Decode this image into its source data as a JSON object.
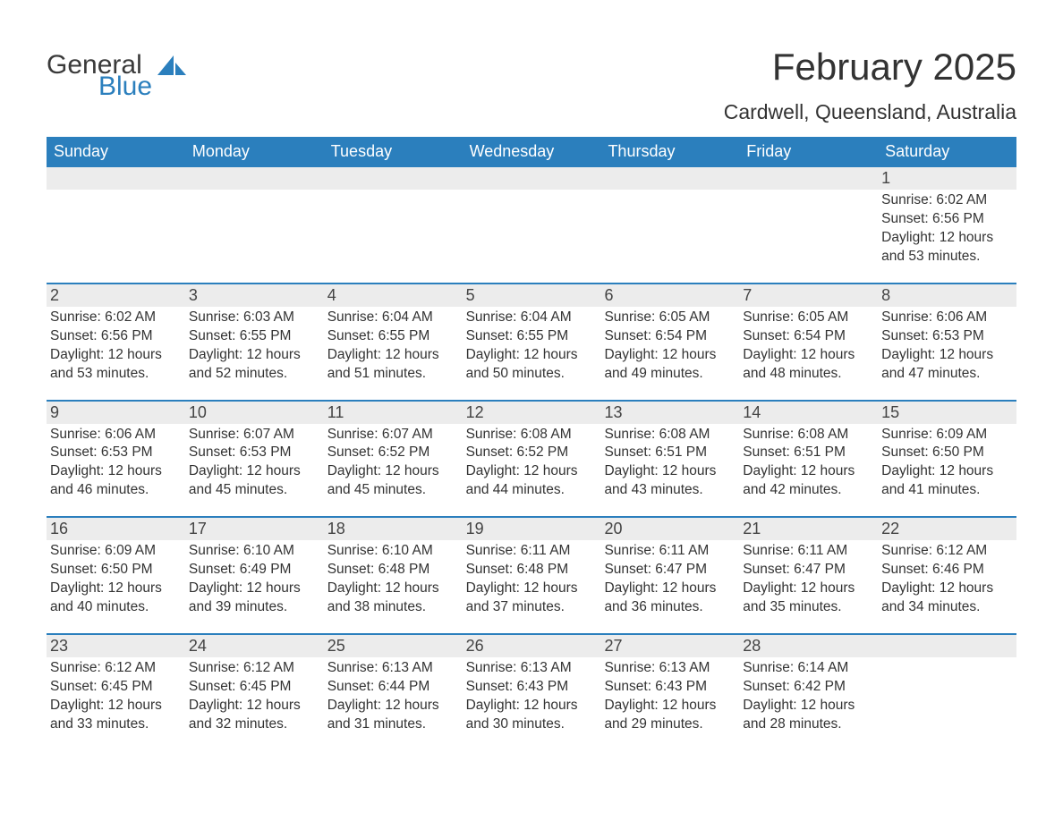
{
  "logo": {
    "word1": "General",
    "word2": "Blue"
  },
  "title": "February 2025",
  "location": "Cardwell, Queensland, Australia",
  "colors": {
    "header_bg": "#2b7fbd",
    "header_text": "#ffffff",
    "stripe_bg": "#ececec",
    "rule": "#2b7fbd",
    "body_text": "#333333",
    "logo_gray": "#3a3a3a",
    "logo_blue": "#2b7fbd",
    "page_bg": "#ffffff"
  },
  "typography": {
    "title_fontsize": 42,
    "location_fontsize": 23,
    "dow_fontsize": 18,
    "daynum_fontsize": 18,
    "body_fontsize": 15.5,
    "font_family": "Arial"
  },
  "days_of_week": [
    "Sunday",
    "Monday",
    "Tuesday",
    "Wednesday",
    "Thursday",
    "Friday",
    "Saturday"
  ],
  "weeks": [
    [
      null,
      null,
      null,
      null,
      null,
      null,
      {
        "n": "1",
        "sunrise": "Sunrise: 6:02 AM",
        "sunset": "Sunset: 6:56 PM",
        "daylight": "Daylight: 12 hours and 53 minutes."
      }
    ],
    [
      {
        "n": "2",
        "sunrise": "Sunrise: 6:02 AM",
        "sunset": "Sunset: 6:56 PM",
        "daylight": "Daylight: 12 hours and 53 minutes."
      },
      {
        "n": "3",
        "sunrise": "Sunrise: 6:03 AM",
        "sunset": "Sunset: 6:55 PM",
        "daylight": "Daylight: 12 hours and 52 minutes."
      },
      {
        "n": "4",
        "sunrise": "Sunrise: 6:04 AM",
        "sunset": "Sunset: 6:55 PM",
        "daylight": "Daylight: 12 hours and 51 minutes."
      },
      {
        "n": "5",
        "sunrise": "Sunrise: 6:04 AM",
        "sunset": "Sunset: 6:55 PM",
        "daylight": "Daylight: 12 hours and 50 minutes."
      },
      {
        "n": "6",
        "sunrise": "Sunrise: 6:05 AM",
        "sunset": "Sunset: 6:54 PM",
        "daylight": "Daylight: 12 hours and 49 minutes."
      },
      {
        "n": "7",
        "sunrise": "Sunrise: 6:05 AM",
        "sunset": "Sunset: 6:54 PM",
        "daylight": "Daylight: 12 hours and 48 minutes."
      },
      {
        "n": "8",
        "sunrise": "Sunrise: 6:06 AM",
        "sunset": "Sunset: 6:53 PM",
        "daylight": "Daylight: 12 hours and 47 minutes."
      }
    ],
    [
      {
        "n": "9",
        "sunrise": "Sunrise: 6:06 AM",
        "sunset": "Sunset: 6:53 PM",
        "daylight": "Daylight: 12 hours and 46 minutes."
      },
      {
        "n": "10",
        "sunrise": "Sunrise: 6:07 AM",
        "sunset": "Sunset: 6:53 PM",
        "daylight": "Daylight: 12 hours and 45 minutes."
      },
      {
        "n": "11",
        "sunrise": "Sunrise: 6:07 AM",
        "sunset": "Sunset: 6:52 PM",
        "daylight": "Daylight: 12 hours and 45 minutes."
      },
      {
        "n": "12",
        "sunrise": "Sunrise: 6:08 AM",
        "sunset": "Sunset: 6:52 PM",
        "daylight": "Daylight: 12 hours and 44 minutes."
      },
      {
        "n": "13",
        "sunrise": "Sunrise: 6:08 AM",
        "sunset": "Sunset: 6:51 PM",
        "daylight": "Daylight: 12 hours and 43 minutes."
      },
      {
        "n": "14",
        "sunrise": "Sunrise: 6:08 AM",
        "sunset": "Sunset: 6:51 PM",
        "daylight": "Daylight: 12 hours and 42 minutes."
      },
      {
        "n": "15",
        "sunrise": "Sunrise: 6:09 AM",
        "sunset": "Sunset: 6:50 PM",
        "daylight": "Daylight: 12 hours and 41 minutes."
      }
    ],
    [
      {
        "n": "16",
        "sunrise": "Sunrise: 6:09 AM",
        "sunset": "Sunset: 6:50 PM",
        "daylight": "Daylight: 12 hours and 40 minutes."
      },
      {
        "n": "17",
        "sunrise": "Sunrise: 6:10 AM",
        "sunset": "Sunset: 6:49 PM",
        "daylight": "Daylight: 12 hours and 39 minutes."
      },
      {
        "n": "18",
        "sunrise": "Sunrise: 6:10 AM",
        "sunset": "Sunset: 6:48 PM",
        "daylight": "Daylight: 12 hours and 38 minutes."
      },
      {
        "n": "19",
        "sunrise": "Sunrise: 6:11 AM",
        "sunset": "Sunset: 6:48 PM",
        "daylight": "Daylight: 12 hours and 37 minutes."
      },
      {
        "n": "20",
        "sunrise": "Sunrise: 6:11 AM",
        "sunset": "Sunset: 6:47 PM",
        "daylight": "Daylight: 12 hours and 36 minutes."
      },
      {
        "n": "21",
        "sunrise": "Sunrise: 6:11 AM",
        "sunset": "Sunset: 6:47 PM",
        "daylight": "Daylight: 12 hours and 35 minutes."
      },
      {
        "n": "22",
        "sunrise": "Sunrise: 6:12 AM",
        "sunset": "Sunset: 6:46 PM",
        "daylight": "Daylight: 12 hours and 34 minutes."
      }
    ],
    [
      {
        "n": "23",
        "sunrise": "Sunrise: 6:12 AM",
        "sunset": "Sunset: 6:45 PM",
        "daylight": "Daylight: 12 hours and 33 minutes."
      },
      {
        "n": "24",
        "sunrise": "Sunrise: 6:12 AM",
        "sunset": "Sunset: 6:45 PM",
        "daylight": "Daylight: 12 hours and 32 minutes."
      },
      {
        "n": "25",
        "sunrise": "Sunrise: 6:13 AM",
        "sunset": "Sunset: 6:44 PM",
        "daylight": "Daylight: 12 hours and 31 minutes."
      },
      {
        "n": "26",
        "sunrise": "Sunrise: 6:13 AM",
        "sunset": "Sunset: 6:43 PM",
        "daylight": "Daylight: 12 hours and 30 minutes."
      },
      {
        "n": "27",
        "sunrise": "Sunrise: 6:13 AM",
        "sunset": "Sunset: 6:43 PM",
        "daylight": "Daylight: 12 hours and 29 minutes."
      },
      {
        "n": "28",
        "sunrise": "Sunrise: 6:14 AM",
        "sunset": "Sunset: 6:42 PM",
        "daylight": "Daylight: 12 hours and 28 minutes."
      },
      null
    ]
  ]
}
